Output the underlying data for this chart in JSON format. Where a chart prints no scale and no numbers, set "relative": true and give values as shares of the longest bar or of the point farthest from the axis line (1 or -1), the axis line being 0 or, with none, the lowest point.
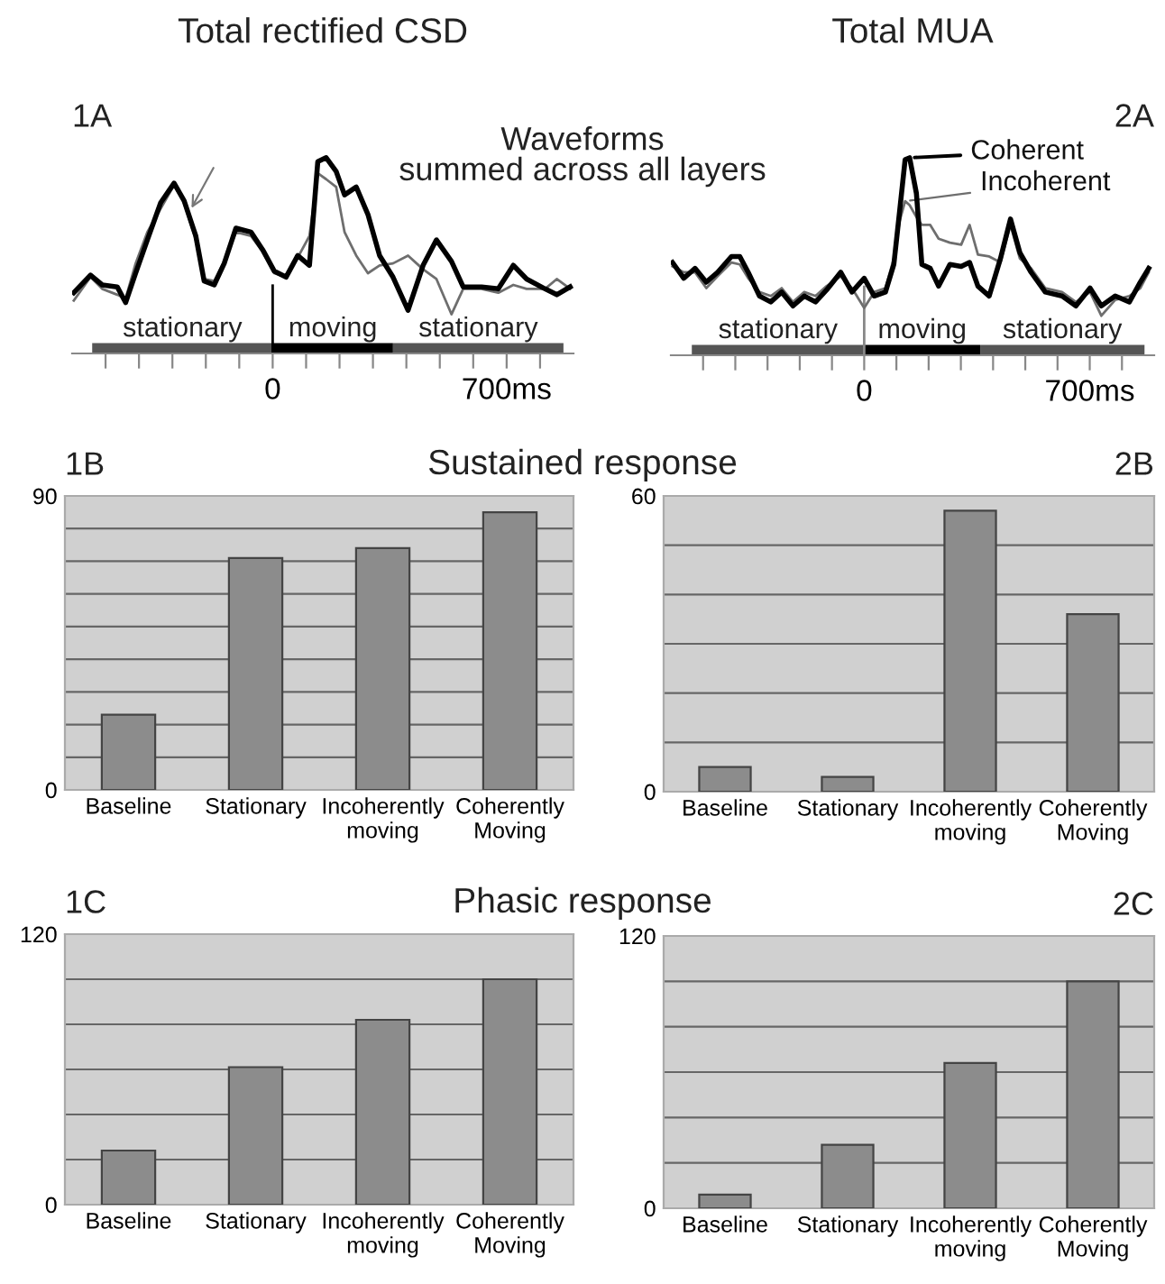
{
  "chart_data": [
    {
      "type": "line",
      "title": "Total rectified CSD",
      "relative": true,
      "tick_labels": "x",
      "grid": false,
      "annotations": [
        "1A",
        "Waveforms\nsummed across all layers"
      ],
      "x": [
        -595,
        -545,
        -510,
        -465,
        -440,
        -410,
        -375,
        -335,
        -295,
        -265,
        -230,
        -205,
        -175,
        -145,
        -110,
        -65,
        -30,
        5,
        40,
        75,
        110,
        135,
        160,
        190,
        215,
        250,
        285,
        320,
        360,
        405,
        450,
        490,
        535,
        570,
        625,
        675,
        720,
        760,
        815,
        850,
        890
      ],
      "xlim": [
        -600,
        900
      ],
      "xticks": [
        {
          "value": -500,
          "label": null
        },
        {
          "value": -400,
          "label": null
        },
        {
          "value": -300,
          "label": null
        },
        {
          "value": -200,
          "label": null
        },
        {
          "value": -100,
          "label": null
        },
        0,
        {
          "value": 100,
          "label": null
        },
        {
          "value": 200,
          "label": null
        },
        {
          "value": 300,
          "label": null
        },
        {
          "value": 400,
          "label": null
        },
        {
          "value": 500,
          "label": null
        },
        {
          "value": 600,
          "label": null
        },
        {
          "value": 700,
          "label": "700ms"
        },
        {
          "value": 800,
          "label": null
        }
      ],
      "series": [
        {
          "color": "#000000",
          "values": [
            0.31,
            0.4,
            0.35,
            0.34,
            0.26,
            0.41,
            0.58,
            0.77,
            0.87,
            0.78,
            0.6,
            0.37,
            0.35,
            0.46,
            0.64,
            0.62,
            0.53,
            0.42,
            0.39,
            0.5,
            0.45,
            0.98,
            1,
            0.93,
            0.81,
            0.85,
            0.71,
            0.5,
            0.39,
            0.22,
            0.45,
            0.58,
            0.47,
            0.34,
            0.34,
            0.33,
            0.45,
            0.38,
            0.33,
            0.3,
            0.34
          ]
        },
        {
          "color": "#6e6e6e",
          "values": [
            0.27,
            0.39,
            0.33,
            0.3,
            0.28,
            0.46,
            0.62,
            0.74,
            0.86,
            0.77,
            0.58,
            0.38,
            0.37,
            0.47,
            0.62,
            0.6,
            0.52,
            0.41,
            0.39,
            0.49,
            0.6,
            0.92,
            0.89,
            0.85,
            0.62,
            0.5,
            0.41,
            0.45,
            0.46,
            0.5,
            0.43,
            0.38,
            0.2,
            0.33,
            0.33,
            0.31,
            0.35,
            0.33,
            0.33,
            0.38,
            0.33
          ]
        }
      ],
      "bands": [
        {
          "axis": "x",
          "from": -540,
          "to": 0,
          "label": "stationary",
          "color": "#555555"
        },
        {
          "axis": "x",
          "from": 0,
          "to": 360,
          "label": "moving",
          "color": "#000000"
        },
        {
          "axis": "x",
          "from": 360,
          "to": 870,
          "label": "stationary",
          "color": "#555555"
        }
      ],
      "ref_lines": [
        {
          "axis": "x",
          "value": 0,
          "color": "#000000"
        }
      ]
    },
    {
      "type": "line",
      "title": "Total MUA",
      "relative": true,
      "tick_labels": "x",
      "grid": false,
      "legend": "top right",
      "annotations": [
        "2A"
      ],
      "x": [
        -595,
        -560,
        -525,
        -490,
        -455,
        -412,
        -386,
        -360,
        -325,
        -290,
        -256,
        -221,
        -186,
        -151,
        -117,
        -73,
        -38,
        0,
        31,
        66,
        92,
        110,
        127,
        141,
        162,
        179,
        205,
        231,
        266,
        301,
        327,
        353,
        388,
        423,
        454,
        483,
        518,
        562,
        614,
        657,
        701,
        736,
        779,
        823,
        857,
        883
      ],
      "xlim": [
        -600,
        900
      ],
      "xticks": [
        {
          "value": -500,
          "label": null
        },
        {
          "value": -400,
          "label": null
        },
        {
          "value": -300,
          "label": null
        },
        {
          "value": -200,
          "label": null
        },
        {
          "value": -100,
          "label": null
        },
        0,
        {
          "value": 100,
          "label": null
        },
        {
          "value": 200,
          "label": null
        },
        {
          "value": 300,
          "label": null
        },
        {
          "value": 400,
          "label": null
        },
        {
          "value": 500,
          "label": null
        },
        {
          "value": 600,
          "label": null
        },
        {
          "value": 700,
          "label": "700ms"
        },
        {
          "value": 800,
          "label": null
        }
      ],
      "series": [
        {
          "name": "Coherent",
          "color": "#000000",
          "values": [
            0.47,
            0.39,
            0.44,
            0.37,
            0.42,
            0.5,
            0.5,
            0.42,
            0.3,
            0.27,
            0.32,
            0.25,
            0.3,
            0.27,
            0.33,
            0.42,
            0.32,
            0.39,
            0.3,
            0.32,
            0.46,
            0.73,
            0.99,
            1,
            0.82,
            0.46,
            0.44,
            0.35,
            0.46,
            0.45,
            0.47,
            0.35,
            0.3,
            0.49,
            0.69,
            0.52,
            0.42,
            0.32,
            0.3,
            0.25,
            0.34,
            0.25,
            0.3,
            0.27,
            0.37,
            0.44
          ]
        },
        {
          "name": "Incoherent",
          "color": "#6e6e6e",
          "values": [
            0.45,
            0.42,
            0.42,
            0.34,
            0.4,
            0.47,
            0.46,
            0.39,
            0.32,
            0.3,
            0.34,
            0.27,
            0.32,
            0.3,
            0.35,
            0.4,
            0.34,
            0.24,
            0.32,
            0.34,
            0.49,
            0.68,
            0.78,
            0.76,
            0.7,
            0.66,
            0.66,
            0.59,
            0.57,
            0.56,
            0.66,
            0.51,
            0.5,
            0.47,
            0.66,
            0.49,
            0.44,
            0.34,
            0.32,
            0.27,
            0.32,
            0.2,
            0.28,
            0.3,
            0.34,
            0.42
          ]
        }
      ],
      "bands": [
        {
          "axis": "x",
          "from": -535,
          "to": 0,
          "label": "stationary",
          "color": "#555555"
        },
        {
          "axis": "x",
          "from": 0,
          "to": 360,
          "label": "moving",
          "color": "#000000"
        },
        {
          "axis": "x",
          "from": 360,
          "to": 870,
          "label": "stationary",
          "color": "#555555"
        }
      ],
      "ref_lines": [
        {
          "axis": "x",
          "value": 0,
          "color": "#888888"
        }
      ]
    },
    {
      "type": "bar",
      "title": "Sustained response",
      "annotations": [
        "1B"
      ],
      "grid": "y",
      "categories": [
        "Baseline",
        "Stationary",
        "Incoherently\nmoving",
        "Coherently\nMoving"
      ],
      "values": [
        23,
        71,
        74,
        85
      ],
      "color": "#8c8c8c",
      "ylim": [
        0,
        90
      ],
      "yticks": [
        0,
        {
          "value": 10,
          "label": null
        },
        {
          "value": 20,
          "label": null
        },
        {
          "value": 30,
          "label": null
        },
        {
          "value": 40,
          "label": null
        },
        {
          "value": 50,
          "label": null
        },
        {
          "value": 60,
          "label": null
        },
        {
          "value": 70,
          "label": null
        },
        {
          "value": 80,
          "label": null
        },
        90
      ]
    },
    {
      "type": "bar",
      "annotations": [
        "2B"
      ],
      "grid": "y",
      "categories": [
        "Baseline",
        "Stationary",
        "Incoherently\nmoving",
        "Coherently\nMoving"
      ],
      "values": [
        5,
        3,
        57,
        36
      ],
      "color": "#8c8c8c",
      "ylim": [
        0,
        60
      ],
      "yticks": [
        0,
        {
          "value": 10,
          "label": null
        },
        {
          "value": 20,
          "label": null
        },
        {
          "value": 30,
          "label": null
        },
        {
          "value": 40,
          "label": null
        },
        {
          "value": 50,
          "label": null
        },
        60
      ]
    },
    {
      "type": "bar",
      "title": "Phasic response",
      "annotations": [
        "1C"
      ],
      "grid": "y",
      "categories": [
        "Baseline",
        "Stationary",
        "Incoherently\nmoving",
        "Coherently\nMoving"
      ],
      "values": [
        24,
        61,
        82,
        100
      ],
      "color": "#8c8c8c",
      "ylim": [
        0,
        120
      ],
      "yticks": [
        0,
        {
          "value": 20,
          "label": null
        },
        {
          "value": 40,
          "label": null
        },
        {
          "value": 60,
          "label": null
        },
        {
          "value": 80,
          "label": null
        },
        {
          "value": 100,
          "label": null
        },
        120
      ]
    },
    {
      "type": "bar",
      "annotations": [
        "2C"
      ],
      "grid": "y",
      "categories": [
        "Baseline",
        "Stationary",
        "Incoherently\nmoving",
        "Coherently\nMoving"
      ],
      "values": [
        6,
        28,
        64,
        100
      ],
      "color": "#8c8c8c",
      "ylim": [
        0,
        120
      ],
      "yticks": [
        0,
        {
          "value": 20,
          "label": null
        },
        {
          "value": 40,
          "label": null
        },
        {
          "value": 60,
          "label": null
        },
        {
          "value": 80,
          "label": null
        },
        {
          "value": 100,
          "label": null
        },
        120
      ]
    }
  ]
}
